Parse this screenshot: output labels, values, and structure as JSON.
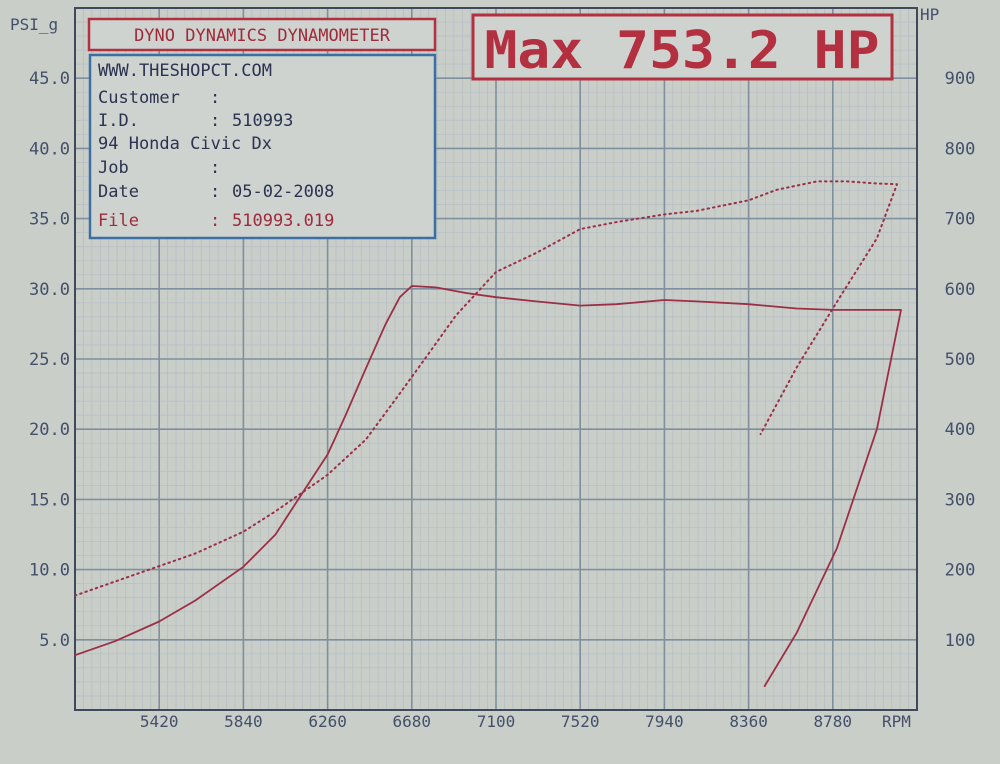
{
  "colors": {
    "paper": "#c9cec9",
    "grid_major": "#7f8f9d",
    "grid_minor": "#b7bfc6",
    "axis_text": "#44506a",
    "curve": "#9c2f45",
    "box_red": "#b23040",
    "box_blue": "#3b6ea3"
  },
  "header": {
    "title": "DYNO DYNAMICS DYNAMOMETER",
    "max_label": "Max 753.2 HP"
  },
  "info": {
    "website": "WWW.THESHOPCT.COM",
    "customer_label": "Customer",
    "customer_value": "",
    "id_label": "I.D.",
    "id_value": "510993",
    "vehicle": "94 Honda Civic Dx",
    "job_label": "Job",
    "job_value": "",
    "date_label": "Date",
    "date_value": "05-02-2008",
    "file_label": "File",
    "file_value": "510993.019",
    "separator": ":"
  },
  "chart_data": {
    "type": "line",
    "x_unit_label": "RPM",
    "left_axis_label": "PSI_g",
    "right_axis_label": "HP",
    "xlim": [
      5000,
      9200
    ],
    "ylim_left": [
      0,
      50
    ],
    "ylim_right": [
      0,
      1000
    ],
    "x_ticks": [
      5420,
      5840,
      6260,
      6680,
      7100,
      7520,
      7940,
      8360,
      8780
    ],
    "left_ticks": [
      "5.0",
      "10.0",
      "15.0",
      "20.0",
      "25.0",
      "30.0",
      "35.0",
      "40.0",
      "45.0"
    ],
    "right_ticks": [
      "100",
      "200",
      "300",
      "400",
      "500",
      "600",
      "700",
      "800",
      "900"
    ],
    "grid": true,
    "series": [
      {
        "axis": "left",
        "style": "solid",
        "x": [
          5000,
          5200,
          5420,
          5600,
          5840,
          6000,
          6150,
          6260,
          6350,
          6450,
          6550,
          6620,
          6680,
          6800,
          6950,
          7100,
          7300,
          7520,
          7700,
          7940,
          8100,
          8360,
          8600,
          8780,
          9000,
          9120,
          9000,
          8800,
          8600,
          8440
        ],
        "y": [
          3.9,
          4.9,
          6.3,
          7.8,
          10.2,
          12.5,
          15.8,
          18.2,
          21.0,
          24.3,
          27.5,
          29.4,
          30.2,
          30.1,
          29.7,
          29.4,
          29.1,
          28.8,
          28.9,
          29.2,
          29.1,
          28.9,
          28.6,
          28.5,
          28.5,
          28.5,
          20.0,
          11.5,
          5.5,
          1.7
        ]
      },
      {
        "axis": "right",
        "style": "dotted",
        "x": [
          5000,
          5200,
          5420,
          5600,
          5840,
          6000,
          6260,
          6450,
          6600,
          6750,
          6900,
          7100,
          7300,
          7520,
          7700,
          7940,
          8100,
          8360,
          8500,
          8700,
          8850,
          9000,
          9100,
          9000,
          8800,
          8600,
          8420
        ],
        "y": [
          163,
          183,
          205,
          223,
          254,
          283,
          335,
          385,
          443,
          502,
          562,
          624,
          651,
          685,
          695,
          706,
          711,
          726,
          741,
          753,
          753,
          750,
          749,
          672,
          581,
          488,
          393
        ]
      }
    ]
  }
}
